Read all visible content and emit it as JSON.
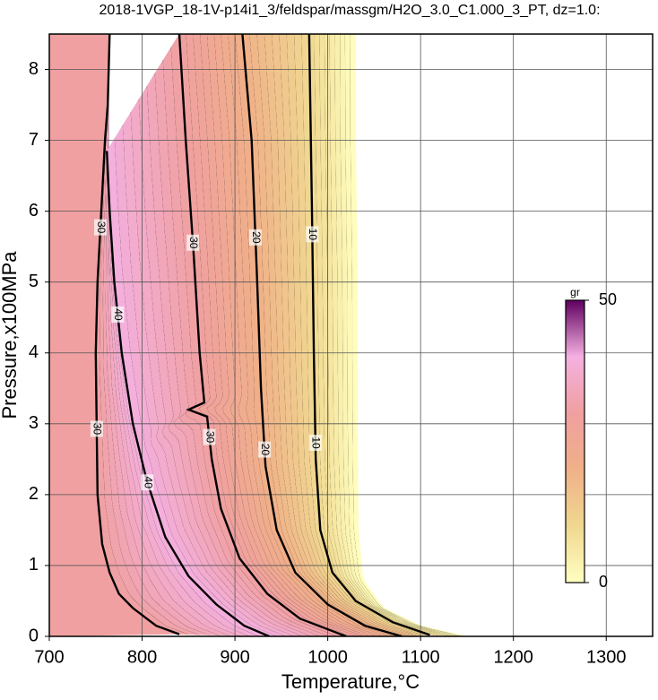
{
  "chart_data": {
    "type": "contour",
    "title": "2018-1VGP_18-1V-p14i1_3/feldspar/massgm/H2O_3.0_C1.000_3_PT, dz=1.0:",
    "xlabel": "Temperature,°C",
    "ylabel": "Pressure,x100MPa",
    "xlim": [
      700,
      1350
    ],
    "ylim": [
      0,
      8.5
    ],
    "xticks": [
      700,
      800,
      900,
      1000,
      1100,
      1200,
      1300
    ],
    "yticks": [
      0,
      1,
      2,
      3,
      4,
      5,
      6,
      7,
      8
    ],
    "grid": true,
    "contours": [
      {
        "level": 30,
        "x": [
          765,
          763,
          760,
          756,
          752,
          750,
          751,
          752,
          757,
          765,
          775,
          790,
          815,
          840
        ],
        "y": [
          8.5,
          7.5,
          7,
          6,
          5,
          4,
          3,
          2,
          1.3,
          0.9,
          0.6,
          0.4,
          0.15,
          0.03
        ]
      },
      {
        "level": 40,
        "x": [
          762,
          765,
          770,
          778,
          790,
          805,
          825,
          850,
          880,
          910,
          937
        ],
        "y": [
          6.85,
          6,
          5,
          4,
          3,
          2.2,
          1.4,
          0.85,
          0.45,
          0.15,
          0
        ]
      },
      {
        "level": 30,
        "x": [
          840,
          847,
          855,
          862,
          867,
          850,
          870,
          875,
          885,
          905,
          935,
          970,
          1020
        ],
        "y": [
          8.5,
          7,
          5.5,
          4,
          3.3,
          3.2,
          3.1,
          2.5,
          1.8,
          1.1,
          0.6,
          0.25,
          0
        ]
      },
      {
        "level": 20,
        "x": [
          908,
          918,
          924,
          928,
          933,
          945,
          965,
          1000,
          1040,
          1080
        ],
        "y": [
          8.5,
          7,
          5,
          3.5,
          2.4,
          1.5,
          0.9,
          0.45,
          0.15,
          0
        ]
      },
      {
        "level": 10,
        "x": [
          980,
          983,
          985,
          987,
          992,
          1005,
          1030,
          1070,
          1110
        ],
        "y": [
          8.5,
          6,
          4,
          2.5,
          1.5,
          0.9,
          0.5,
          0.2,
          0.02
        ]
      }
    ],
    "domain_edge": {
      "x": [
        1030,
        1030,
        1032,
        1032,
        1033,
        1038,
        1060,
        1100,
        1150
      ],
      "y": [
        8.5,
        7,
        5,
        3,
        1.5,
        0.8,
        0.4,
        0.15,
        0
      ]
    },
    "colorbar": {
      "label": "gr",
      "lim": [
        0,
        50
      ],
      "ticks": [
        0,
        50
      ],
      "colormap": [
        "#ffffc0",
        "#f0d890",
        "#f0b088",
        "#f0a0a0",
        "#f4b0e0",
        "#600060"
      ]
    }
  }
}
